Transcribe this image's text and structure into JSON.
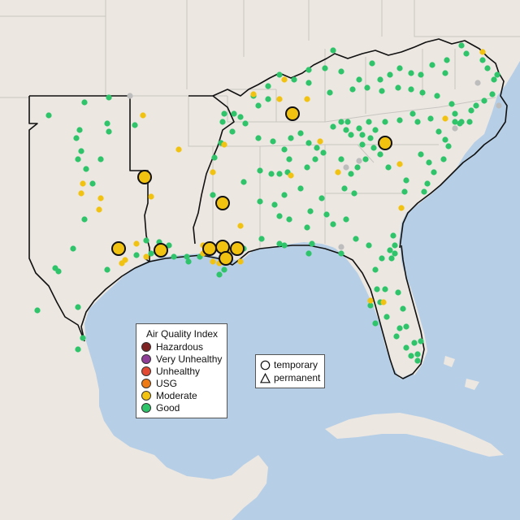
{
  "legend": {
    "title": "Air Quality Index",
    "categories": [
      {
        "label": "Hazardous",
        "color": "#7e2223"
      },
      {
        "label": "Very Unhealthy",
        "color": "#8f3f97"
      },
      {
        "label": "Unhealthy",
        "color": "#e34a33"
      },
      {
        "label": "USG",
        "color": "#ee7a16"
      },
      {
        "label": "Moderate",
        "color": "#f2c211"
      },
      {
        "label": "Good",
        "color": "#2ec46a"
      }
    ]
  },
  "shape_legend": {
    "temporary": "temporary",
    "permanent": "permanent"
  },
  "colors": {
    "water": "#b7cfe6",
    "land": "#ece7e1",
    "outside_land": "#e8e3df",
    "border_region": "#111111",
    "good": "#2ec46a",
    "moderate": "#f2c211",
    "no_data": "#bdbdbd"
  }
}
